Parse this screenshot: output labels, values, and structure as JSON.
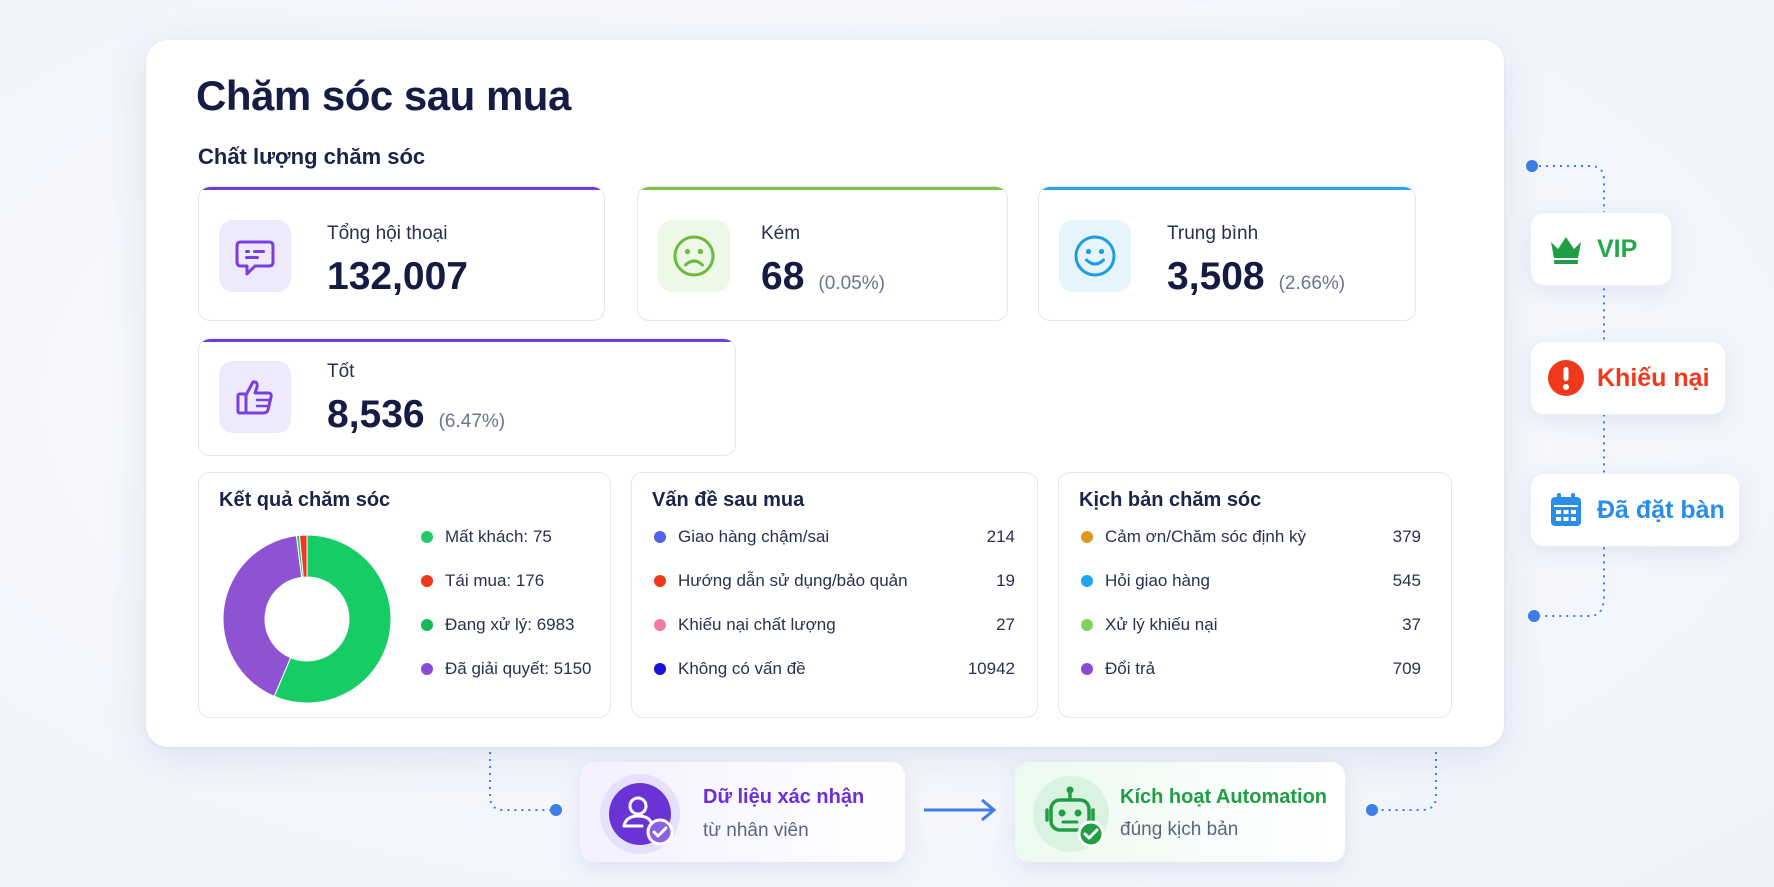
{
  "page": {
    "title": "Chăm sóc sau mua",
    "section_title": "Chất lượng chăm sóc"
  },
  "stats": [
    {
      "label": "Tổng hội thoại",
      "value": "132,007",
      "pct": "",
      "icon": "chat-bubble-icon",
      "accent": "#6f3fd6"
    },
    {
      "label": "Kém",
      "value": "68",
      "pct": "(0.05%)",
      "icon": "sad-face-icon",
      "accent": "#7dc443"
    },
    {
      "label": "Trung bình",
      "value": "3,508",
      "pct": "(2.66%)",
      "icon": "smile-face-icon",
      "accent": "#2aa3e8"
    },
    {
      "label": "Tốt",
      "value": "8,536",
      "pct": "(6.47%)",
      "icon": "thumbs-up-icon",
      "accent": "#6f3fd6"
    }
  ],
  "results": {
    "title": "Kết quả chăm sóc",
    "legend": [
      {
        "label": "Mất khách: 75",
        "color": "#1fcc6a"
      },
      {
        "label": "Tái mua: 176",
        "color": "#f0381d"
      },
      {
        "label": "Đang xử lý: 6983",
        "color": "#16b95a"
      },
      {
        "label": "Đã giải quyết: 5150",
        "color": "#8a4bd4"
      }
    ]
  },
  "chart_data": {
    "type": "pie",
    "title": "Kết quả chăm sóc",
    "categories": [
      "Mất khách",
      "Tái mua",
      "Đang xử lý",
      "Đã giải quyết"
    ],
    "values": [
      75,
      176,
      6983,
      5150
    ],
    "colors": [
      "#1fcc6a",
      "#f0381d",
      "#16cc65",
      "#8f52d2"
    ],
    "donut": true
  },
  "issues": {
    "title": "Vấn đề sau mua",
    "rows": [
      {
        "label": "Giao hàng chậm/sai",
        "value": "214",
        "color": "#4e63f0"
      },
      {
        "label": "Hướng dẫn sử dụng/bảo quản",
        "value": "19",
        "color": "#f0381d"
      },
      {
        "label": "Khiếu nại chất lượng",
        "value": "27",
        "color": "#f07ca0"
      },
      {
        "label": "Không có vấn đề",
        "value": "10942",
        "color": "#1f10d8"
      }
    ]
  },
  "scripts": {
    "title": "Kịch bản chăm sóc",
    "rows": [
      {
        "label": "Cảm ơn/Chăm sóc định kỳ",
        "value": "379",
        "color": "#e0961f"
      },
      {
        "label": "Hỏi giao hàng",
        "value": "545",
        "color": "#1ea6ee"
      },
      {
        "label": "Xử lý khiếu nại",
        "value": "37",
        "color": "#7fd45a"
      },
      {
        "label": "Đổi trả",
        "value": "709",
        "color": "#8a4bd4"
      }
    ]
  },
  "badges": [
    {
      "label": "VIP",
      "icon": "crown-icon",
      "color": "#23a84a"
    },
    {
      "label": "Khiếu nại",
      "icon": "alert-icon",
      "color": "#f0381d"
    },
    {
      "label": "Đã đặt bàn",
      "icon": "calendar-icon",
      "color": "#2a8de8"
    }
  ],
  "flow": {
    "left_title": "Dữ liệu xác nhận",
    "left_sub": "từ nhân viên",
    "right_title": "Kích hoạt Automation",
    "right_sub": "đúng kịch bản"
  }
}
